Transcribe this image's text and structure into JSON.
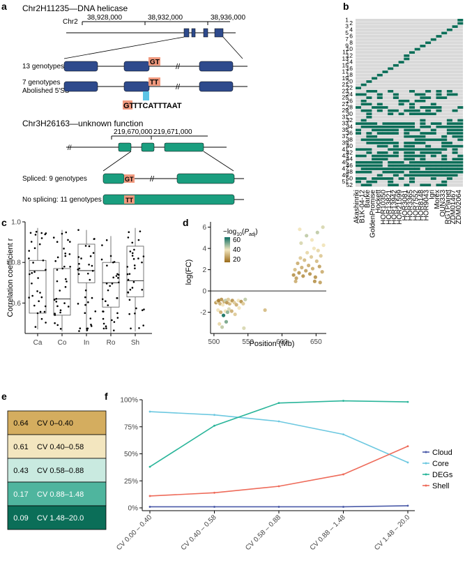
{
  "panels": {
    "a": "a",
    "b": "b",
    "c": "c",
    "d": "d",
    "e": "e",
    "f": "f"
  },
  "panel_a": {
    "gene1": {
      "title": "Chr2H11235—DNA helicase",
      "chrom": "Chr2",
      "ticks": [
        "38,928,000",
        "38,932,000",
        "38,936,000"
      ],
      "row1_label": "13 genotypes",
      "row1_motif": "GT",
      "row2_label_1": "7 genotypes",
      "row2_label_2": "Abolished 5′SS",
      "row2_motif": "TT",
      "seq_highlight": "GT",
      "seq_rest": "TTCATTTAAT"
    },
    "gene2": {
      "title": "Chr3H26163—unknown function",
      "ticks": [
        "219,670,000",
        "219,671,000"
      ],
      "row1_label": "Spliced: 9 genotypes",
      "row1_motif": "GT",
      "row2_label": "No splicing: 11 genotypes",
      "row2_motif": "TT"
    },
    "colors": {
      "exon_blue": "#2e4a8c",
      "exon_green": "#1a9e7f",
      "motif": "#f0997e",
      "highlight": "#5bc4e6"
    }
  },
  "panel_b": {
    "row_labels": [
      "1",
      "2",
      "3",
      "4",
      "5",
      "6",
      "7",
      "8",
      "9",
      "10",
      "11",
      "12",
      "13",
      "14",
      "15",
      "16",
      "17",
      "18",
      "19",
      "20",
      "21",
      "22",
      "23",
      "24",
      "25",
      "26",
      "27",
      "28",
      "29",
      "30",
      "31",
      "32",
      "33",
      "34",
      "35",
      "36",
      "37",
      "38",
      "39",
      "40",
      "41",
      "42",
      "43",
      "44",
      "45",
      "46",
      "47",
      "48",
      "49",
      "50",
      "51",
      "52"
    ],
    "genotypes": [
      "Akashinriki",
      "B1K-04-12",
      "Barke",
      "GoldenPromise",
      "Hockett",
      "HOR10350",
      "HOR13821",
      "HOR13942",
      "HOR21599",
      "HOR3081",
      "HOR3365",
      "HOR7552",
      "HOR8148",
      "HOR9043",
      "Igri",
      "Morex",
      "OUN333",
      "RGTPlanet",
      "ZDM01467",
      "ZDM02064"
    ],
    "colors": {
      "present": "#0b6e58",
      "absent": "#d9d9d9"
    }
  },
  "panel_c": {
    "chart_data": {
      "type": "box",
      "categories": [
        "Ca",
        "Co",
        "In",
        "Ro",
        "Sh"
      ],
      "ylabel": "Correlation coefficient r",
      "ylim": [
        0.45,
        1.0
      ],
      "yticks": [
        "0.6",
        "0.8",
        "1.0"
      ],
      "boxes": [
        {
          "category": "Ca",
          "min": 0.47,
          "q1": 0.55,
          "median": 0.76,
          "q3": 0.81,
          "max": 0.97
        },
        {
          "category": "Co",
          "min": 0.46,
          "q1": 0.54,
          "median": 0.62,
          "q3": 0.77,
          "max": 0.96
        },
        {
          "category": "In",
          "min": 0.46,
          "q1": 0.7,
          "median": 0.76,
          "q3": 0.89,
          "max": 0.96
        },
        {
          "category": "Ro",
          "min": 0.45,
          "q1": 0.58,
          "median": 0.7,
          "q3": 0.8,
          "max": 0.93
        },
        {
          "category": "Sh",
          "min": 0.46,
          "q1": 0.63,
          "median": 0.71,
          "q3": 0.88,
          "max": 0.97
        }
      ]
    }
  },
  "panel_d": {
    "chart_data": {
      "type": "scatter",
      "xlabel": "Position (Mb)",
      "ylabel": "log(FC)",
      "xlim": [
        495,
        665
      ],
      "ylim": [
        -4,
        6.5
      ],
      "xticks": [
        "500",
        "550",
        "600",
        "650"
      ],
      "yticks": [
        "-2",
        "0",
        "2",
        "4",
        "6"
      ],
      "legend_title_pre": "−log",
      "legend_title_sub": "10",
      "legend_title_paren": "(",
      "legend_title_p": "P",
      "legend_title_adj": "adj",
      "legend_title_close": ")",
      "legend_ticks": [
        "60",
        "40",
        "20"
      ],
      "color_range": [
        "#9a6a18",
        "#f2e6bf",
        "#0e6f63"
      ],
      "points": [
        {
          "x": 503,
          "y": -1.1,
          "c": 0.2
        },
        {
          "x": 505,
          "y": -1.0,
          "c": 0.4
        },
        {
          "x": 507,
          "y": -0.9,
          "c": 0.1
        },
        {
          "x": 509,
          "y": -1.2,
          "c": 0.3
        },
        {
          "x": 511,
          "y": -0.8,
          "c": 0.2
        },
        {
          "x": 513,
          "y": -1.3,
          "c": 0.5
        },
        {
          "x": 515,
          "y": -1.0,
          "c": 0.3
        },
        {
          "x": 517,
          "y": -0.9,
          "c": 0.6
        },
        {
          "x": 519,
          "y": -1.1,
          "c": 0.2
        },
        {
          "x": 521,
          "y": -0.8,
          "c": 0.4
        },
        {
          "x": 523,
          "y": -1.2,
          "c": 0.3
        },
        {
          "x": 525,
          "y": -1.0,
          "c": 0.5
        },
        {
          "x": 527,
          "y": -0.9,
          "c": 0.2
        },
        {
          "x": 530,
          "y": -1.1,
          "c": 0.4
        },
        {
          "x": 533,
          "y": -1.3,
          "c": 0.3
        },
        {
          "x": 536,
          "y": -0.9,
          "c": 0.5
        },
        {
          "x": 540,
          "y": -1.0,
          "c": 0.2
        },
        {
          "x": 543,
          "y": -1.2,
          "c": 0.4
        },
        {
          "x": 546,
          "y": -0.8,
          "c": 0.6
        },
        {
          "x": 506,
          "y": -1.8,
          "c": 0.5
        },
        {
          "x": 510,
          "y": -2.0,
          "c": 0.3
        },
        {
          "x": 514,
          "y": -2.3,
          "c": 0.95
        },
        {
          "x": 517,
          "y": -1.9,
          "c": 0.5
        },
        {
          "x": 520,
          "y": -2.0,
          "c": 0.7
        },
        {
          "x": 522,
          "y": -1.7,
          "c": 0.55
        },
        {
          "x": 526,
          "y": -1.9,
          "c": 0.3
        },
        {
          "x": 531,
          "y": -2.2,
          "c": 0.4
        },
        {
          "x": 537,
          "y": -1.6,
          "c": 0.5
        },
        {
          "x": 508,
          "y": -3.1,
          "c": 0.45
        },
        {
          "x": 512,
          "y": -3.4,
          "c": 0.6
        },
        {
          "x": 518,
          "y": -2.9,
          "c": 0.75
        },
        {
          "x": 544,
          "y": -3.5,
          "c": 0.55
        },
        {
          "x": 575,
          "y": -1.8,
          "c": 0.35
        },
        {
          "x": 617,
          "y": 1.5,
          "c": 0.2
        },
        {
          "x": 619,
          "y": 2.0,
          "c": 0.35
        },
        {
          "x": 621,
          "y": 1.2,
          "c": 0.25
        },
        {
          "x": 623,
          "y": 2.6,
          "c": 0.3
        },
        {
          "x": 625,
          "y": 1.7,
          "c": 0.2
        },
        {
          "x": 627,
          "y": 3.1,
          "c": 0.4
        },
        {
          "x": 629,
          "y": 2.2,
          "c": 0.3
        },
        {
          "x": 631,
          "y": 1.4,
          "c": 0.2
        },
        {
          "x": 633,
          "y": 2.9,
          "c": 0.35
        },
        {
          "x": 635,
          "y": 1.9,
          "c": 0.25
        },
        {
          "x": 637,
          "y": 3.6,
          "c": 0.45
        },
        {
          "x": 639,
          "y": 2.4,
          "c": 0.3
        },
        {
          "x": 641,
          "y": 1.6,
          "c": 0.2
        },
        {
          "x": 643,
          "y": 3.2,
          "c": 0.4
        },
        {
          "x": 645,
          "y": 2.1,
          "c": 0.3
        },
        {
          "x": 647,
          "y": 4.0,
          "c": 0.5
        },
        {
          "x": 649,
          "y": 1.3,
          "c": 0.2
        },
        {
          "x": 651,
          "y": 2.8,
          "c": 0.35
        },
        {
          "x": 653,
          "y": 3.8,
          "c": 0.45
        },
        {
          "x": 655,
          "y": 2.3,
          "c": 0.25
        },
        {
          "x": 657,
          "y": 3.3,
          "c": 0.4
        },
        {
          "x": 659,
          "y": 1.8,
          "c": 0.3
        },
        {
          "x": 661,
          "y": 4.3,
          "c": 0.5
        },
        {
          "x": 628,
          "y": 4.5,
          "c": 0.55
        },
        {
          "x": 636,
          "y": 5.2,
          "c": 0.6
        },
        {
          "x": 644,
          "y": 4.8,
          "c": 0.5
        },
        {
          "x": 652,
          "y": 5.5,
          "c": 0.6
        },
        {
          "x": 660,
          "y": 6.0,
          "c": 0.55
        },
        {
          "x": 626,
          "y": 5.8,
          "c": 0.5
        },
        {
          "x": 648,
          "y": 0.9,
          "c": 0.2
        },
        {
          "x": 656,
          "y": 0.8,
          "c": 0.25
        },
        {
          "x": 620,
          "y": 0.9,
          "c": 0.3
        }
      ]
    }
  },
  "panel_e": {
    "chart_data": {
      "type": "heatmap",
      "values": [
        "0.64",
        "0.61",
        "0.43",
        "0.17",
        "0.09"
      ],
      "labels": [
        "CV 0–0.40",
        "CV 0.40–0.58",
        "CV 0.58–0.88",
        "CV 0.88–1.48",
        "CV 1.48–20.0"
      ],
      "colors": [
        "#d4ad5f",
        "#f3e6bf",
        "#c9eae0",
        "#4fb59e",
        "#0b6e58"
      ]
    }
  },
  "panel_f": {
    "chart_data": {
      "type": "line",
      "categories": [
        "CV 0.00 – 0.40",
        "CV 0.40 – 0.58",
        "CV 0.58 – 0.88",
        "CV 0.88 – 1.48",
        "CV 1.48 – 20.0"
      ],
      "ylim": [
        0,
        100
      ],
      "yticks": [
        "0%",
        "25%",
        "50%",
        "75%",
        "100%"
      ],
      "series": [
        {
          "name": "Cloud",
          "color": "#4a5aa8",
          "values": [
            1,
            1,
            1,
            1,
            2
          ]
        },
        {
          "name": "Core",
          "color": "#6cc8e0",
          "values": [
            89,
            86,
            80,
            68,
            42
          ]
        },
        {
          "name": "DEGs",
          "color": "#2ab59a",
          "values": [
            38,
            76,
            97,
            99,
            98
          ]
        },
        {
          "name": "Shell",
          "color": "#ee6b5a",
          "values": [
            11,
            14,
            20,
            31,
            57
          ]
        }
      ]
    }
  }
}
